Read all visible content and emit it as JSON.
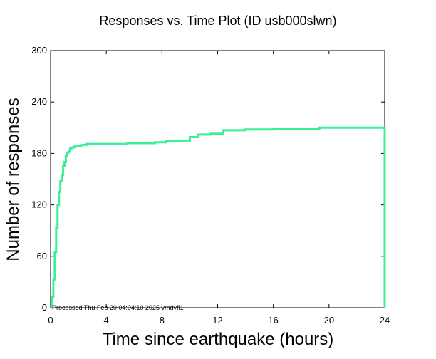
{
  "chart_data": {
    "type": "line",
    "title": "Responses vs. Time Plot (ID usb000slwn)",
    "xlabel": "Time since earthquake (hours)",
    "ylabel": "Number of responses",
    "xlim": [
      0,
      24
    ],
    "ylim": [
      0,
      300
    ],
    "x_ticks": [
      0,
      4,
      8,
      12,
      16,
      20,
      24
    ],
    "y_ticks": [
      0,
      60,
      120,
      180,
      240,
      300
    ],
    "x_tick_labels": [
      "0",
      "4",
      "8",
      "12",
      "16",
      "20",
      "24"
    ],
    "y_tick_labels": [
      "0",
      "60",
      "120",
      "180",
      "240",
      "300"
    ],
    "grid": false,
    "line_color": "#3cf09a",
    "annotation": "Processed Thu Feb 20 04:04:10 2025 vmdyfi1",
    "series": [
      {
        "step": true,
        "x": [
          0,
          0.1,
          0.2,
          0.3,
          0.4,
          0.5,
          0.6,
          0.7,
          0.8,
          0.9,
          1.0,
          1.1,
          1.2,
          1.3,
          1.4,
          1.5,
          1.7,
          1.9,
          2.2,
          2.6,
          3.0,
          4.0,
          5.5,
          7.0,
          7.5,
          8.3,
          9.3,
          10.0,
          10.6,
          11.5,
          12.4,
          14.0,
          16.0,
          18.0,
          19.3,
          21.0,
          23.9
        ],
        "y": [
          0,
          13,
          33,
          65,
          93,
          120,
          135,
          148,
          155,
          165,
          170,
          177,
          181,
          183,
          186,
          187,
          188,
          189,
          190,
          191,
          191,
          191,
          192,
          192,
          193,
          194,
          195,
          199,
          202,
          203,
          207,
          208,
          209,
          209,
          210,
          210,
          210
        ]
      }
    ]
  }
}
